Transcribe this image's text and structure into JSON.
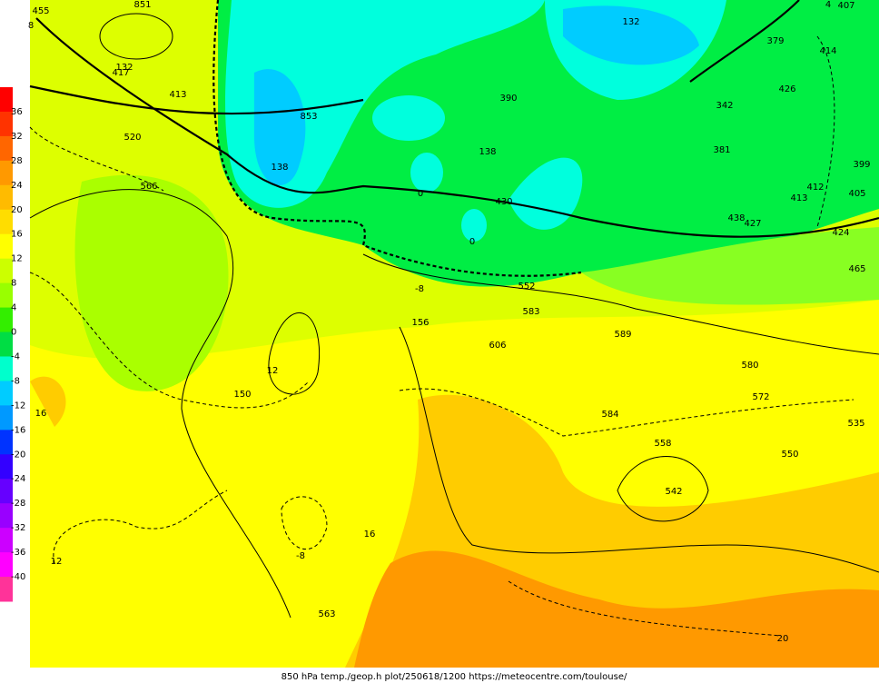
{
  "colorbar": {
    "labels": [
      36,
      32,
      28,
      24,
      20,
      16,
      12,
      8,
      4,
      0,
      -4,
      -8,
      -12,
      -16,
      -20,
      -24,
      -28,
      -32,
      -36,
      -40
    ],
    "colors": [
      "#ff0000",
      "#ff3300",
      "#ff6600",
      "#ff9900",
      "#ffbb00",
      "#ffdd00",
      "#ffff00",
      "#ccff00",
      "#99ff00",
      "#33ee00",
      "#00dd44",
      "#00ffcc",
      "#00ccff",
      "#0099ff",
      "#0033ff",
      "#3300ff",
      "#6600ff",
      "#9900ff",
      "#cc00ff",
      "#ff00ff",
      "#ff3399"
    ]
  },
  "map_labels": [
    "8",
    "455",
    "851",
    "132",
    "417",
    "413",
    "520",
    "566",
    "853",
    "138",
    "390",
    "138",
    "430",
    "0",
    "0",
    "132",
    "379",
    "407",
    "4",
    "414",
    "426",
    "342",
    "381",
    "438",
    "427",
    "413",
    "412",
    "399",
    "405",
    "424",
    "465",
    "552",
    "583",
    "606",
    "589",
    "580",
    "572",
    "584",
    "558",
    "542",
    "535",
    "550",
    "16",
    "12",
    "150",
    "12",
    "156",
    "-8",
    "-8",
    "16",
    "563",
    "20"
  ],
  "footer": "850 hPa temp./geop.h plot/250618/1200 https://meteocentre.com/toulouse/"
}
